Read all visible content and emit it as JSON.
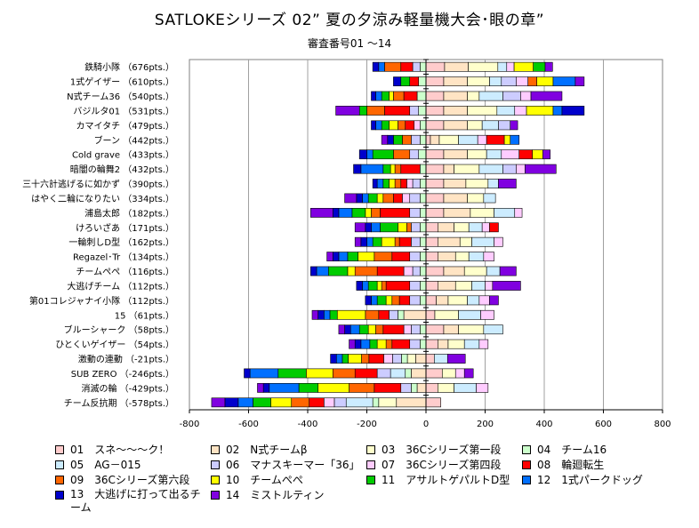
{
  "chart_data": {
    "type": "bar",
    "stacked": true,
    "orientation": "horizontal",
    "title": "SATLOKEシリーズ 02” 夏の夕涼み軽量機大会･眼の章”",
    "subtitle": "審査番号01 ～14",
    "xlim": [
      -800,
      800
    ],
    "xticks": [
      -800,
      -600,
      -400,
      -200,
      0,
      200,
      400,
      600,
      800
    ],
    "grid": true,
    "legend_position": "bottom",
    "categories": [
      "鉄騎小隊 （676pts.）",
      "1式ゲイザー （610pts.）",
      "N式チーム36 （540pts.）",
      "バジルタ01 （531pts.）",
      "カマイタチ （479pts.）",
      "ブーン （442pts.）",
      "Cold grave （433pts.）",
      "暗闇の輪舞2 （432pts.）",
      "三十六計逃げるに如かず （390pts.）",
      "はやく二輪になりたい （334pts.）",
      "浦島太郎 （182pts.）",
      "けろいざあ （171pts.）",
      "一輪刺しD型 （162pts.）",
      "Regazel･Tr （134pts.）",
      "チームぺぺ （116pts.）",
      "大逃げチーム （112pts.）",
      "第01コレジャナイ小隊 （112pts.）",
      "15 （61pts.）",
      "ブルーシャーク （58pts.）",
      "ひとくいゲイザー （54pts.）",
      "激動の連動 （-21pts.）",
      "SUB ZERO （-246pts.）",
      "消滅の輪 （-429pts.）",
      "チーム反抗期 （-578pts.）"
    ],
    "series": [
      {
        "name": "01　スネ～～～ク！",
        "color": "#FFCCCC",
        "values": [
          63,
          60,
          60,
          60,
          60,
          15,
          60,
          60,
          60,
          60,
          60,
          40,
          40,
          40,
          60,
          40,
          35,
          30,
          60,
          40,
          28,
          55,
          40,
          50
        ]
      },
      {
        "name": "02　N式チームβ",
        "color": "#FFE4C4",
        "values": [
          80,
          80,
          80,
          80,
          80,
          30,
          80,
          35,
          75,
          80,
          90,
          55,
          75,
          60,
          70,
          60,
          40,
          -75,
          50,
          35,
          -35,
          -50,
          -30,
          -100
        ]
      },
      {
        "name": "03　36Cシリーズ第一段",
        "color": "#FFFFCC",
        "values": [
          100,
          75,
          40,
          100,
          50,
          65,
          65,
          85,
          75,
          55,
          80,
          50,
          40,
          45,
          75,
          55,
          65,
          80,
          85,
          55,
          -28,
          45,
          55,
          -60
        ]
      },
      {
        "name": "04　チーム16",
        "color": "#CCFFCC",
        "values": [
          -20,
          -25,
          -30,
          -25,
          -20,
          -20,
          -25,
          -20,
          -20,
          -20,
          -20,
          -20,
          -20,
          -20,
          -20,
          -20,
          -20,
          -20,
          -20,
          -20,
          -20,
          -20,
          -20,
          -20
        ]
      },
      {
        "name": "05　AG－015",
        "color": "#CCECFF",
        "values": [
          30,
          40,
          80,
          60,
          55,
          65,
          50,
          80,
          35,
          40,
          70,
          45,
          75,
          50,
          45,
          45,
          40,
          75,
          65,
          50,
          45,
          -50,
          75,
          -90
        ]
      },
      {
        "name": "06　マナスキーマー「36」",
        "color": "#CCCCFF",
        "values": [
          -25,
          50,
          60,
          -30,
          40,
          -30,
          -30,
          45,
          -25,
          -35,
          -35,
          -30,
          -30,
          -35,
          -25,
          -35,
          -35,
          -30,
          -30,
          -35,
          -30,
          -45,
          -35,
          -40
        ]
      },
      {
        "name": "07　36Cシリーズ第四段",
        "color": "#FFCCFF",
        "values": [
          25,
          40,
          35,
          40,
          -20,
          30,
          60,
          30,
          -20,
          -25,
          25,
          25,
          30,
          35,
          -30,
          25,
          35,
          45,
          -25,
          30,
          -30,
          30,
          40,
          -35
        ]
      },
      {
        "name": "08　輪廻転生",
        "color": "#FF0000",
        "values": [
          -40,
          -30,
          -45,
          -85,
          -30,
          60,
          45,
          -65,
          -20,
          -30,
          -100,
          30,
          -40,
          -60,
          -90,
          -80,
          -35,
          -35,
          -70,
          -60,
          -50,
          -75,
          -90,
          -50
        ]
      },
      {
        "name": "09　36Cシリーズ第六段",
        "color": "#FF6600",
        "values": [
          -55,
          30,
          -35,
          -60,
          -25,
          -30,
          -55,
          -20,
          -20,
          -35,
          -30,
          -15,
          -15,
          -60,
          -75,
          -15,
          -25,
          -45,
          -25,
          -20,
          -25,
          -75,
          -85,
          -60
        ]
      },
      {
        "name": "10　チームぺぺ",
        "color": "#FFFF00",
        "values": [
          65,
          55,
          -15,
          90,
          -30,
          20,
          35,
          -15,
          -20,
          -20,
          -20,
          -30,
          -45,
          -55,
          -25,
          -15,
          -20,
          -95,
          -25,
          -30,
          -45,
          -90,
          -105,
          -70
        ]
      },
      {
        "name": "11　アサルトゲパルトD型",
        "color": "#00CC00",
        "values": [
          40,
          -30,
          -25,
          -25,
          -25,
          -30,
          -70,
          -25,
          -20,
          -30,
          -45,
          -60,
          -30,
          -35,
          -65,
          -30,
          -30,
          -25,
          -30,
          -25,
          -20,
          -95,
          -65,
          -60
        ]
      },
      {
        "name": "12　1式パークドッグ",
        "color": "#0070FF",
        "values": [
          -20,
          75,
          -20,
          30,
          -20,
          30,
          -20,
          -75,
          -20,
          -20,
          -45,
          -30,
          -20,
          -30,
          -40,
          -20,
          -20,
          -20,
          -30,
          -30,
          -20,
          -95,
          -100,
          -50
        ]
      },
      {
        "name": "13　大逃げに打って出るチーム",
        "color": "#0000CC",
        "values": [
          -20,
          -25,
          -15,
          75,
          -15,
          -20,
          -25,
          -25,
          -15,
          -20,
          -20,
          -20,
          -20,
          -20,
          -20,
          -20,
          -20,
          -20,
          -20,
          -20,
          -20,
          -20,
          -20,
          -45
        ]
      },
      {
        "name": "14　ミストルティン",
        "color": "#8000E0",
        "values": [
          25,
          30,
          105,
          -80,
          25,
          -20,
          25,
          105,
          60,
          -40,
          -75,
          -35,
          -20,
          -20,
          55,
          95,
          30,
          -20,
          -20,
          -20,
          60,
          30,
          -20,
          -45
        ]
      }
    ]
  }
}
